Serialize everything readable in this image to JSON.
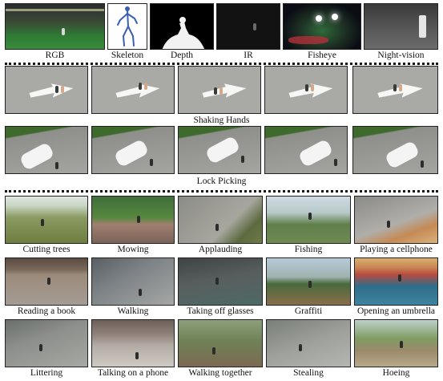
{
  "modalities": [
    {
      "label": "RGB",
      "bg": "linear-gradient(#2a2c30 0%, #3b4a36 40%, #2f7a35 70%, #3a8c3c 100%)"
    },
    {
      "label": "Skeleton",
      "bg": "#ffffff"
    },
    {
      "label": "Depth",
      "bg": "#000000"
    },
    {
      "label": "IR",
      "bg": "#121212"
    },
    {
      "label": "Fisheye",
      "bg": "radial-gradient(ellipse at 50% 60%, #2f6a3a 0%, #1c2d22 45%, #0a0d14 75%)"
    },
    {
      "label": "Night-vision",
      "bg": "linear-gradient(#3a3a3a, #5a5a5a 60%, #6b6b6b)"
    }
  ],
  "sequences": [
    {
      "label": "Shaking Hands"
    },
    {
      "label": "Lock Picking"
    }
  ],
  "actions": [
    {
      "label": "Cutting trees",
      "bg": "linear-gradient(#dfe6e2 0%, #c7d5c2 20%, #8a9a62 45%, #6f7d3f 100%)"
    },
    {
      "label": "Mowing",
      "bg": "linear-gradient(#3f6e3a 0%, #56883f 45%, #a08070 60%, #7a6358 100%)"
    },
    {
      "label": "Applauding",
      "bg": "linear-gradient(135deg, #8c8c86 0%, #a7a7a0 60%, #5d6a3f 80%, #6c7b46 100%)"
    },
    {
      "label": "Fishing",
      "bg": "linear-gradient(#cfdbe4 0%, #b7c9c8 35%, #5f7f4a 60%, #6f8b52 100%)"
    },
    {
      "label": "Playing a cellphone",
      "bg": "linear-gradient(160deg, #8a8a88 0%, #b0aea9 55%, #c58a55 75%, #d9b27c 100%)"
    },
    {
      "label": "Reading a book",
      "bg": "linear-gradient(#5a4a42 0%, #7a6a5c 25%, #9b8a7a 35%, #a49c94 100%)"
    },
    {
      "label": "Walking",
      "bg": "linear-gradient(150deg, #5a5f65 0%, #7d8286 40%, #a5a7a4 100%)"
    },
    {
      "label": "Taking off glasses",
      "bg": "linear-gradient(170deg, #3e4344 0%, #585e5e 45%, #4e6a66 100%)"
    },
    {
      "label": "Graffiti",
      "bg": "linear-gradient(#b7cbd8 0%, #9fb2b0 40%, #476a3c 55%, #8b6e4c 100%)"
    },
    {
      "label": "Opening an umbrella",
      "bg": "linear-gradient(#d7b06f 0%, #c98453 20%, #b84b3e 35%, #2f6d8a 60%, #3d84a0 100%)"
    },
    {
      "label": "Littering",
      "bg": "linear-gradient(160deg, #6a6f6c 0%, #8c8f8b 40%, #a6a8a3 100%)"
    },
    {
      "label": "Talking on a phone",
      "bg": "linear-gradient(#6b5f58 0%, #8f817a 30%, #b3aca5 55%, #cfcac4 100%)"
    },
    {
      "label": "Walking together",
      "bg": "linear-gradient(#8c9f7a 0%, #6f8257 45%, #7d6a52 100%)"
    },
    {
      "label": "Stealing",
      "bg": "linear-gradient(160deg, #7a7e78 0%, #9ea19b 50%, #b4b6b1 100%)"
    },
    {
      "label": "Hoeing",
      "bg": "linear-gradient(#bdd0c8 0%, #7f9c63 40%, #9a8a6a 65%, #b7a88a 100%)"
    }
  ],
  "colors": {
    "drone_ground": "#a9aaa6",
    "road_arrow": "#ffffff",
    "car": "#f4f4f4",
    "parking_lot": "#8e8f8a",
    "grass_strip": "#3f6a2e"
  }
}
